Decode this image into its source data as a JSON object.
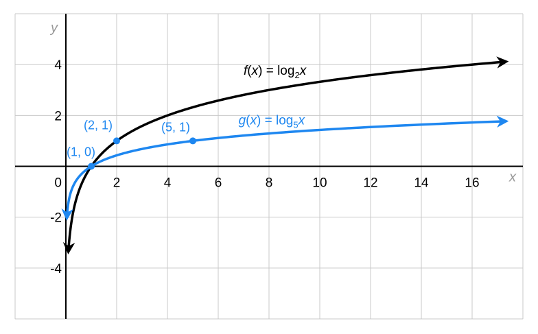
{
  "chart_data": {
    "type": "line",
    "xlabel": "x",
    "ylabel": "y",
    "xlim": [
      -2,
      18
    ],
    "ylim": [
      -6,
      6
    ],
    "x_ticks": [
      2,
      4,
      6,
      8,
      10,
      12,
      14,
      16
    ],
    "x_tick_labels": [
      "2",
      "4",
      "6",
      "8",
      "10",
      "12",
      "14",
      "16"
    ],
    "y_ticks": [
      4,
      2,
      -2,
      -4
    ],
    "y_tick_labels": [
      "4",
      "2",
      "-2",
      "-4"
    ],
    "origin_label": "0",
    "grid": true,
    "series": [
      {
        "name": "f(x) = log2x",
        "label_parts": {
          "fn": "f",
          "var": "x",
          "base": "2"
        },
        "color": "#000000",
        "base": 2,
        "x": [
          0.1,
          0.25,
          0.5,
          1,
          2,
          4,
          8,
          16,
          17.3
        ],
        "values": [
          -3.32,
          -2,
          -1,
          0,
          1,
          2,
          3,
          4,
          4.11
        ]
      },
      {
        "name": "g(x) = log5x",
        "label_parts": {
          "fn": "g",
          "var": "x",
          "base": "5"
        },
        "color": "#1e87f0",
        "base": 5,
        "x": [
          0.04,
          0.2,
          1,
          5,
          17.3
        ],
        "values": [
          -2,
          -1,
          0,
          1,
          1.77
        ]
      }
    ],
    "points": [
      {
        "x": 1,
        "y": 0,
        "label": "(1, 0)",
        "color": "#1e87f0"
      },
      {
        "x": 2,
        "y": 1,
        "label": "(2, 1)",
        "color": "#1e87f0"
      },
      {
        "x": 5,
        "y": 1,
        "label": "(5, 1)",
        "color": "#1e87f0"
      }
    ]
  }
}
